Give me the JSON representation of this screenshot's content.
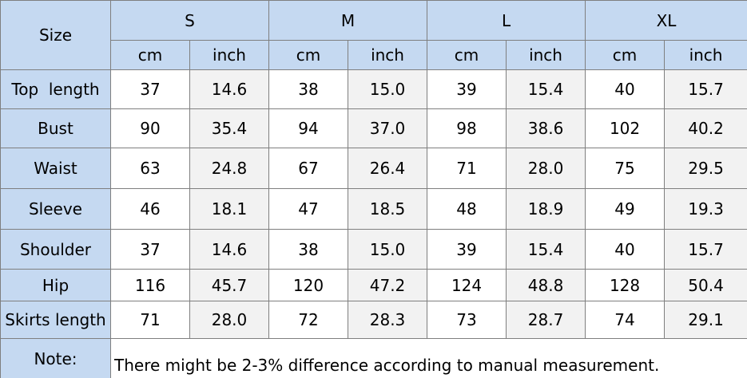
{
  "table": {
    "corner": "Size",
    "sizes": [
      "S",
      "M",
      "L",
      "XL"
    ],
    "units": [
      "cm",
      "inch",
      "cm",
      "inch",
      "cm",
      "inch",
      "cm",
      "inch"
    ],
    "rows": [
      {
        "label": "Top  length",
        "values": [
          "37",
          "14.6",
          "38",
          "15.0",
          "39",
          "15.4",
          "40",
          "15.7"
        ]
      },
      {
        "label": "Bust",
        "values": [
          "90",
          "35.4",
          "94",
          "37.0",
          "98",
          "38.6",
          "102",
          "40.2"
        ]
      },
      {
        "label": "Waist",
        "values": [
          "63",
          "24.8",
          "67",
          "26.4",
          "71",
          "28.0",
          "75",
          "29.5"
        ]
      },
      {
        "label": "Sleeve",
        "values": [
          "46",
          "18.1",
          "47",
          "18.5",
          "48",
          "18.9",
          "49",
          "19.3"
        ]
      },
      {
        "label": "Shoulder",
        "values": [
          "37",
          "14.6",
          "38",
          "15.0",
          "39",
          "15.4",
          "40",
          "15.7"
        ]
      },
      {
        "label": "Hip",
        "values": [
          "116",
          "45.7",
          "120",
          "47.2",
          "124",
          "48.8",
          "128",
          "50.4"
        ]
      },
      {
        "label": "Skirts length",
        "values": [
          "71",
          "28.0",
          "72",
          "28.3",
          "73",
          "28.7",
          "74",
          "29.1"
        ]
      }
    ],
    "note": {
      "label": "Note:",
      "text": "There might be 2-3% difference according to manual measurement."
    }
  }
}
